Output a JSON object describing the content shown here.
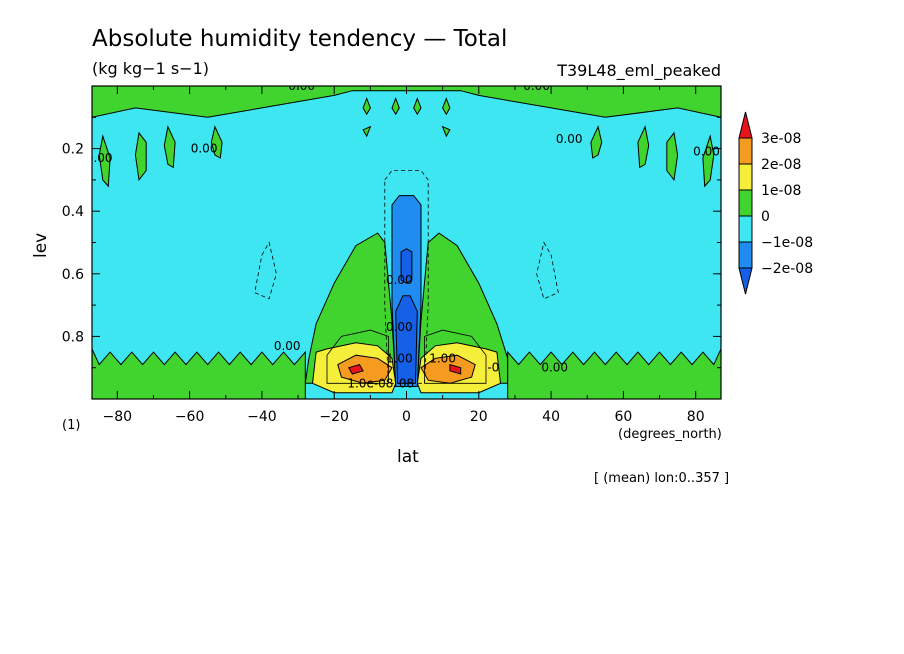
{
  "chart_data": {
    "type": "contour",
    "title": "Absolute humidity tendency — Total",
    "units": "(kg kg−1 s−1)",
    "run_label": "T39L48_eml_peaked",
    "xlabel": "lat",
    "x_units": "(degrees_north)",
    "ylabel": "lev",
    "y_units": "(1)",
    "xlim": [
      -87,
      87
    ],
    "ylim": [
      1.0,
      0.0
    ],
    "x_ticks": [
      -80,
      -60,
      -40,
      -20,
      0,
      20,
      40,
      60,
      80
    ],
    "y_ticks": [
      0.2,
      0.4,
      0.6,
      0.8
    ],
    "colorbar": {
      "levels": [
        "3e-08",
        "2e-08",
        "1e-08",
        "0",
        "−1e-08",
        "−2e-08"
      ],
      "colors": [
        "#e8141c",
        "#f59b20",
        "#f5ee3a",
        "#41d42e",
        "#3ee6f2",
        "#1e8cf0",
        "#1560e6"
      ]
    },
    "contour_labels": [
      "0.00",
      "0.00",
      "0.00",
      "0.00",
      "0.00",
      "0.00",
      "0.00",
      "0.00",
      "0.00",
      "0.00",
      "1.00",
      "1.00",
      "-0",
      "1.0e-08",
      "08"
    ],
    "annotation": "[ (mean) lon:0..357 ]",
    "regions": [
      {
        "level": "0 to 1e-08",
        "color": "#41d42e",
        "points": [
          [
            -87,
            0.0
          ],
          [
            -87,
            0.1
          ],
          [
            -75,
            0.07
          ],
          [
            -55,
            0.1
          ],
          [
            -40,
            0.07
          ],
          [
            -20,
            0.03
          ],
          [
            -15,
            0.015
          ],
          [
            15,
            0.015
          ],
          [
            20,
            0.03
          ],
          [
            40,
            0.07
          ],
          [
            55,
            0.1
          ],
          [
            75,
            0.07
          ],
          [
            87,
            0.1
          ],
          [
            87,
            0.0
          ]
        ]
      },
      {
        "level": "0 to 1e-08",
        "color": "#41d42e",
        "points": [
          [
            -27,
            0.87
          ],
          [
            -25,
            0.76
          ],
          [
            -20,
            0.63
          ],
          [
            -14,
            0.51
          ],
          [
            -8,
            0.47
          ],
          [
            -6,
            0.5
          ],
          [
            -4,
            0.75
          ],
          [
            -3,
            0.95
          ],
          [
            -28,
            0.95
          ]
        ]
      },
      {
        "level": "0 to 1e-08",
        "color": "#41d42e",
        "points": [
          [
            3,
            0.95
          ],
          [
            4,
            0.75
          ],
          [
            6,
            0.5
          ],
          [
            9,
            0.47
          ],
          [
            14,
            0.51
          ],
          [
            20,
            0.63
          ],
          [
            25,
            0.76
          ],
          [
            28,
            0.87
          ],
          [
            28,
            0.95
          ]
        ]
      },
      {
        "level": "0 to 1e-08",
        "color": "#41d42e",
        "points": [
          [
            -87,
            0.84
          ],
          [
            -85,
            0.89
          ],
          [
            -82,
            0.85
          ],
          [
            -79,
            0.89
          ],
          [
            -76,
            0.85
          ],
          [
            -73,
            0.89
          ],
          [
            -70,
            0.85
          ],
          [
            -67,
            0.89
          ],
          [
            -64,
            0.85
          ],
          [
            -61,
            0.89
          ],
          [
            -58,
            0.85
          ],
          [
            -55,
            0.89
          ],
          [
            -52,
            0.85
          ],
          [
            -49,
            0.89
          ],
          [
            -46,
            0.85
          ],
          [
            -43,
            0.89
          ],
          [
            -40,
            0.85
          ],
          [
            -37,
            0.89
          ],
          [
            -34,
            0.85
          ],
          [
            -31,
            0.89
          ],
          [
            -28,
            0.85
          ],
          [
            -28,
            1.0
          ],
          [
            -87,
            1.0
          ]
        ]
      },
      {
        "level": "0 to 1e-08",
        "color": "#41d42e",
        "points": [
          [
            28,
            0.85
          ],
          [
            31,
            0.89
          ],
          [
            34,
            0.85
          ],
          [
            37,
            0.89
          ],
          [
            40,
            0.85
          ],
          [
            43,
            0.89
          ],
          [
            46,
            0.85
          ],
          [
            49,
            0.89
          ],
          [
            52,
            0.85
          ],
          [
            55,
            0.89
          ],
          [
            58,
            0.85
          ],
          [
            61,
            0.89
          ],
          [
            64,
            0.85
          ],
          [
            67,
            0.89
          ],
          [
            70,
            0.85
          ],
          [
            73,
            0.89
          ],
          [
            76,
            0.85
          ],
          [
            79,
            0.89
          ],
          [
            82,
            0.85
          ],
          [
            85,
            0.89
          ],
          [
            87,
            0.84
          ],
          [
            87,
            1.0
          ],
          [
            28,
            1.0
          ]
        ]
      },
      {
        "level": "0 to 1e-08",
        "color": "#41d42e",
        "points": [
          [
            -84,
            0.16
          ],
          [
            -82,
            0.23
          ],
          [
            -82.5,
            0.32
          ],
          [
            -84,
            0.3
          ],
          [
            -85,
            0.22
          ]
        ]
      },
      {
        "level": "0 to 1e-08",
        "color": "#41d42e",
        "points": [
          [
            84,
            0.16
          ],
          [
            85,
            0.22
          ],
          [
            84,
            0.3
          ],
          [
            82.5,
            0.32
          ],
          [
            82,
            0.23
          ]
        ]
      },
      {
        "level": "0 to 1e-08",
        "color": "#41d42e",
        "points": [
          [
            -74,
            0.15
          ],
          [
            -72,
            0.18
          ],
          [
            -72,
            0.27
          ],
          [
            -74,
            0.3
          ],
          [
            -75,
            0.22
          ]
        ]
      },
      {
        "level": "0 to 1e-08",
        "color": "#41d42e",
        "points": [
          [
            74,
            0.15
          ],
          [
            75,
            0.22
          ],
          [
            74,
            0.3
          ],
          [
            72,
            0.27
          ],
          [
            72,
            0.18
          ]
        ]
      },
      {
        "level": "0 to 1e-08",
        "color": "#41d42e",
        "points": [
          [
            -66,
            0.13
          ],
          [
            -64,
            0.18
          ],
          [
            -64.5,
            0.26
          ],
          [
            -66,
            0.25
          ],
          [
            -67,
            0.19
          ]
        ]
      },
      {
        "level": "0 to 1e-08",
        "color": "#41d42e",
        "points": [
          [
            66,
            0.13
          ],
          [
            67,
            0.19
          ],
          [
            66,
            0.25
          ],
          [
            64.5,
            0.26
          ],
          [
            64,
            0.18
          ]
        ]
      },
      {
        "level": "0 to 1e-08",
        "color": "#41d42e",
        "points": [
          [
            -53,
            0.13
          ],
          [
            -51,
            0.18
          ],
          [
            -51.5,
            0.23
          ],
          [
            -53,
            0.22
          ],
          [
            -54,
            0.18
          ]
        ]
      },
      {
        "level": "0 to 1e-08",
        "color": "#41d42e",
        "points": [
          [
            53,
            0.13
          ],
          [
            54,
            0.18
          ],
          [
            53,
            0.22
          ],
          [
            51.5,
            0.23
          ],
          [
            51,
            0.18
          ]
        ]
      },
      {
        "level": "0 to 1e-08",
        "color": "#41d42e",
        "points": [
          [
            -11,
            0.04
          ],
          [
            -10,
            0.07
          ],
          [
            -11,
            0.09
          ],
          [
            -12,
            0.07
          ]
        ]
      },
      {
        "level": "0 to 1e-08",
        "color": "#41d42e",
        "points": [
          [
            11,
            0.04
          ],
          [
            12,
            0.07
          ],
          [
            11,
            0.09
          ],
          [
            10,
            0.07
          ]
        ]
      },
      {
        "level": "0 to 1e-08",
        "color": "#41d42e",
        "points": [
          [
            -3,
            0.04
          ],
          [
            -2,
            0.07
          ],
          [
            -3,
            0.09
          ],
          [
            -4,
            0.07
          ]
        ]
      },
      {
        "level": "0 to 1e-08",
        "color": "#41d42e",
        "points": [
          [
            3,
            0.04
          ],
          [
            4,
            0.07
          ],
          [
            3,
            0.09
          ],
          [
            2,
            0.07
          ]
        ]
      },
      {
        "level": "0 to 1e-08",
        "color": "#41d42e",
        "points": [
          [
            -12,
            0.14
          ],
          [
            -10,
            0.13
          ],
          [
            -11,
            0.16
          ]
        ]
      },
      {
        "level": "0 to 1e-08",
        "color": "#41d42e",
        "points": [
          [
            10,
            0.13
          ],
          [
            12,
            0.14
          ],
          [
            11,
            0.16
          ]
        ]
      },
      {
        "level": "1e-08 to 2e-08",
        "color": "#f5ee3a",
        "points": [
          [
            -25,
            0.85
          ],
          [
            -22,
            0.84
          ],
          [
            -14,
            0.82
          ],
          [
            -8,
            0.83
          ],
          [
            -4,
            0.87
          ],
          [
            -3,
            0.95
          ],
          [
            -4,
            0.98
          ],
          [
            -20,
            0.98
          ],
          [
            -26,
            0.95
          ]
        ]
      },
      {
        "level": "1e-08 to 2e-08",
        "color": "#f5ee3a",
        "points": [
          [
            3,
            0.95
          ],
          [
            4,
            0.87
          ],
          [
            8,
            0.83
          ],
          [
            14,
            0.82
          ],
          [
            22,
            0.84
          ],
          [
            25,
            0.85
          ],
          [
            26,
            0.95
          ],
          [
            20,
            0.98
          ],
          [
            4,
            0.98
          ]
        ]
      },
      {
        "level": "2e-08 to 3e-08",
        "color": "#f59b20",
        "points": [
          [
            -19,
            0.89
          ],
          [
            -14,
            0.86
          ],
          [
            -8,
            0.87
          ],
          [
            -4,
            0.9
          ],
          [
            -6,
            0.94
          ],
          [
            -12,
            0.95
          ],
          [
            -18,
            0.93
          ]
        ]
      },
      {
        "level": "2e-08 to 3e-08",
        "color": "#f59b20",
        "points": [
          [
            4,
            0.9
          ],
          [
            8,
            0.87
          ],
          [
            14,
            0.86
          ],
          [
            19,
            0.89
          ],
          [
            18,
            0.93
          ],
          [
            12,
            0.95
          ],
          [
            6,
            0.94
          ]
        ]
      },
      {
        "level": "above 3e-08",
        "color": "#e8141c",
        "points": [
          [
            -16,
            0.9
          ],
          [
            -13,
            0.89
          ],
          [
            -12,
            0.91
          ],
          [
            -15,
            0.92
          ]
        ]
      },
      {
        "level": "above 3e-08",
        "color": "#e8141c",
        "points": [
          [
            12,
            0.89
          ],
          [
            15,
            0.9
          ],
          [
            15,
            0.92
          ],
          [
            12,
            0.91
          ]
        ]
      },
      {
        "level": "-2e-08 to -1e-08",
        "color": "#1e8cf0",
        "points": [
          [
            -4,
            0.38
          ],
          [
            -2,
            0.35
          ],
          [
            2,
            0.35
          ],
          [
            4,
            0.38
          ],
          [
            4,
            0.7
          ],
          [
            3,
            0.96
          ],
          [
            -3,
            0.96
          ],
          [
            -4,
            0.7
          ]
        ]
      },
      {
        "level": "below -2e-08",
        "color": "#1560e6",
        "points": [
          [
            -1.5,
            0.53
          ],
          [
            0,
            0.52
          ],
          [
            1.5,
            0.53
          ],
          [
            1.5,
            0.62
          ],
          [
            0,
            0.63
          ],
          [
            -1.5,
            0.62
          ]
        ]
      },
      {
        "level": "below -2e-08",
        "color": "#1560e6",
        "points": [
          [
            -3,
            0.72
          ],
          [
            -1,
            0.67
          ],
          [
            1,
            0.67
          ],
          [
            3,
            0.72
          ],
          [
            2.5,
            0.95
          ],
          [
            -2.5,
            0.95
          ]
        ]
      }
    ],
    "contours": [
      {
        "style": "dashed",
        "points": [
          [
            -6,
            0.3
          ],
          [
            -4,
            0.27
          ],
          [
            4,
            0.27
          ],
          [
            6,
            0.3
          ],
          [
            6,
            0.7
          ],
          [
            5,
            0.95
          ],
          [
            -5,
            0.95
          ],
          [
            -6,
            0.7
          ]
        ]
      },
      {
        "style": "dashed",
        "points": [
          [
            -40,
            0.54
          ],
          [
            -38,
            0.5
          ],
          [
            -36,
            0.6
          ],
          [
            -38,
            0.68
          ],
          [
            -42,
            0.66
          ]
        ]
      },
      {
        "style": "dashed",
        "points": [
          [
            38,
            0.5
          ],
          [
            40,
            0.54
          ],
          [
            42,
            0.66
          ],
          [
            38,
            0.68
          ],
          [
            36,
            0.6
          ]
        ]
      },
      {
        "style": "solid",
        "points": [
          [
            -22,
            0.86
          ],
          [
            -18,
            0.8
          ],
          [
            -10,
            0.78
          ],
          [
            -5,
            0.8
          ],
          [
            -5,
            0.95
          ],
          [
            -22,
            0.95
          ]
        ]
      },
      {
        "style": "solid",
        "points": [
          [
            5,
            0.8
          ],
          [
            10,
            0.78
          ],
          [
            18,
            0.8
          ],
          [
            22,
            0.86
          ],
          [
            22,
            0.95
          ],
          [
            5,
            0.95
          ]
        ]
      }
    ],
    "label_positions": [
      [
        -85,
        0.23
      ],
      [
        -56,
        0.2
      ],
      [
        -33,
        0.83
      ],
      [
        -29,
        0.0
      ],
      [
        36,
        0.0
      ],
      [
        45,
        0.17
      ],
      [
        83,
        0.21
      ],
      [
        41,
        0.9
      ],
      [
        -2,
        0.62
      ],
      [
        -2,
        0.77
      ],
      [
        -2,
        0.87
      ],
      [
        10,
        0.87
      ],
      [
        24,
        0.9
      ],
      [
        -10,
        0.95
      ],
      [
        0,
        0.95
      ]
    ]
  },
  "colors": {
    "background": "#ffffff",
    "green": "#41d42e",
    "cyan": "#3ee6f2",
    "blue": "#1e8cf0",
    "dark_blue": "#1560e6",
    "yellow": "#f5ee3a",
    "orange": "#f59b20",
    "red": "#e8141c"
  }
}
